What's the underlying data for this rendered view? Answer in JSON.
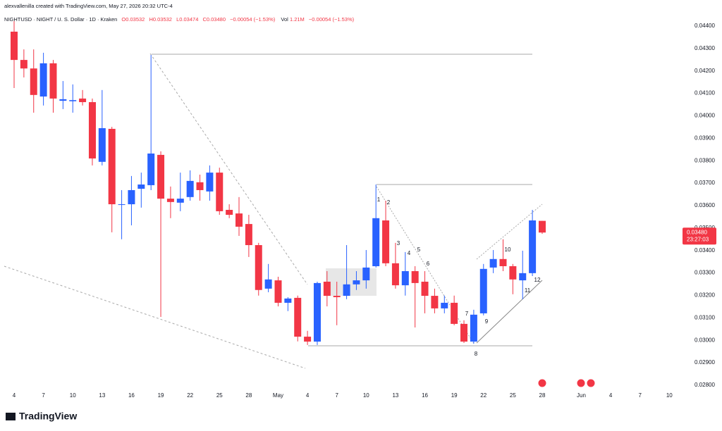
{
  "chart_data": {
    "type": "candlestick",
    "attribution": "alexvallenilla created with TradingView.com, May 27, 2026 20:32 UTC-4",
    "title": "NIGHTUSD · NIGHT / U. S. Dollar · 1D · Kraken",
    "ohlc_legend": [
      "O0.03532",
      "H0.03532",
      "L0.03474",
      "C0.03480",
      "−0.00054 (−1.53%)"
    ],
    "volume_legend": [
      "Vol",
      "1.21M",
      "−0.00054 (−1.53%)"
    ],
    "last_price_label": "0.03480",
    "countdown": "23:27:03",
    "annotations": [
      "1",
      "2",
      "3",
      "4",
      "5",
      "6",
      "7",
      "8",
      "9",
      "10",
      "11",
      "12"
    ],
    "brand": "TradingView",
    "up_color": "#2962ff",
    "down_color": "#f23645",
    "categories": [
      "4",
      null,
      null,
      "7",
      null,
      null,
      "10",
      null,
      null,
      "13",
      null,
      null,
      "16",
      null,
      null,
      "19",
      null,
      null,
      "22",
      null,
      null,
      "25",
      null,
      null,
      "28",
      null,
      null,
      "May",
      null,
      null,
      "4",
      null,
      null,
      "7",
      null,
      null,
      "10",
      null,
      null,
      "13",
      null,
      null,
      "16",
      null,
      null,
      "19",
      null,
      null,
      "22",
      null,
      null,
      "25",
      null,
      null,
      "28",
      null,
      null,
      null,
      "Jun",
      null,
      null,
      "4",
      null,
      null,
      "7",
      null,
      null,
      "10"
    ],
    "open": [
      0.04375,
      0.04249,
      0.04211,
      0.04086,
      0.04234,
      0.04067,
      0.04065,
      0.04077,
      0.04061,
      0.03795,
      0.03942,
      0.03603,
      0.03606,
      0.03675,
      0.03691,
      0.03826,
      0.03631,
      0.03613,
      0.03638,
      0.03704,
      0.03663,
      0.03747,
      0.03581,
      0.03565,
      0.03518,
      0.03424,
      0.0323,
      0.03267,
      0.03167,
      0.03189,
      0.03016,
      0.02994,
      0.03261,
      0.03198,
      0.03198,
      0.03249,
      0.03267,
      0.0333,
      0.03534,
      0.03343,
      0.03245,
      0.03308,
      0.03261,
      0.03198,
      0.03142,
      0.03167,
      0.03073,
      0.02994,
      0.0312,
      0.03324,
      0.03362,
      0.0333,
      0.03267,
      0.03299,
      0.03532,
      null,
      null,
      null,
      null,
      null,
      null,
      null,
      null,
      null,
      null,
      null,
      null,
      null
    ],
    "high": [
      0.04422,
      0.04296,
      0.04296,
      0.04281,
      0.04249,
      0.04155,
      0.0414,
      0.04115,
      0.04077,
      0.04115,
      0.03951,
      0.03669,
      0.03732,
      0.03747,
      0.04271,
      0.03842,
      0.03685,
      0.03747,
      0.03757,
      0.03738,
      0.03779,
      0.03769,
      0.03606,
      0.03638,
      0.03559,
      0.03434,
      0.0334,
      0.03283,
      0.03192,
      0.03199,
      0.03042,
      0.03261,
      0.03308,
      0.03261,
      0.03424,
      0.03308,
      0.03402,
      0.03694,
      0.03622,
      0.03434,
      0.03393,
      0.0333,
      0.03308,
      0.0323,
      0.03199,
      0.03199,
      0.03089,
      0.03136,
      0.0334,
      0.03402,
      0.0345,
      0.0334,
      0.03399,
      0.03581,
      0.03532,
      null,
      null,
      null,
      null,
      null,
      null,
      null,
      null,
      null,
      null,
      null,
      null,
      null
    ],
    "low": [
      0.04124,
      0.04171,
      0.04014,
      0.04046,
      0.04014,
      0.0403,
      0.04014,
      0.04046,
      0.03779,
      0.03779,
      0.03481,
      0.0345,
      0.03512,
      0.03591,
      0.03669,
      0.03104,
      0.03544,
      0.03575,
      0.03622,
      0.03622,
      0.03622,
      0.03559,
      0.03544,
      0.03465,
      0.03371,
      0.03199,
      0.03214,
      0.03151,
      0.0313,
      0.02995,
      0.02979,
      0.02979,
      0.03151,
      0.03067,
      0.03183,
      0.03224,
      0.0323,
      0.03324,
      0.0333,
      0.0323,
      0.03199,
      0.03057,
      0.0312,
      0.0312,
      0.0312,
      0.03067,
      0.02988,
      0.02985,
      0.03111,
      0.03299,
      0.03308,
      0.03205,
      0.03183,
      0.03286,
      0.03474,
      null,
      null,
      null,
      null,
      null,
      null,
      null,
      null,
      null,
      null,
      null,
      null,
      null
    ],
    "close": [
      0.04249,
      0.04211,
      0.04093,
      0.04234,
      0.04077,
      0.04074,
      0.0407,
      0.04061,
      0.0381,
      0.03945,
      0.03606,
      0.03606,
      0.03669,
      0.03694,
      0.03832,
      0.03631,
      0.03616,
      0.03631,
      0.0371,
      0.03669,
      0.03747,
      0.03575,
      0.03559,
      0.03506,
      0.03424,
      0.03224,
      0.03271,
      0.03167,
      0.03186,
      0.03016,
      0.02994,
      0.03255,
      0.03198,
      0.03192,
      0.03249,
      0.03267,
      0.03324,
      0.03544,
      0.03343,
      0.03245,
      0.03308,
      0.03255,
      0.03198,
      0.03142,
      0.03167,
      0.03073,
      0.02994,
      0.03114,
      0.03318,
      0.03362,
      0.0333,
      0.03271,
      0.03299,
      0.03534,
      0.0348,
      null,
      null,
      null,
      null,
      null,
      null,
      null,
      null,
      null,
      null,
      null,
      null,
      null
    ],
    "ylim": [
      0.02784,
      0.04469
    ],
    "yticks": [
      {
        "value": 0.044,
        "label": "0.04400"
      },
      {
        "value": 0.043,
        "label": "0.04300"
      },
      {
        "value": 0.042,
        "label": "0.04200"
      },
      {
        "value": 0.041,
        "label": "0.04100"
      },
      {
        "value": 0.04,
        "label": "0.04000"
      },
      {
        "value": 0.039,
        "label": "0.03900"
      },
      {
        "value": 0.038,
        "label": "0.03800"
      },
      {
        "value": 0.037,
        "label": "0.03700"
      },
      {
        "value": 0.036,
        "label": "0.03600"
      },
      {
        "value": 0.035,
        "label": "0.03500"
      },
      {
        "value": 0.034,
        "label": "0.03400"
      },
      {
        "value": 0.033,
        "label": "0.03300"
      },
      {
        "value": 0.032,
        "label": "0.03200"
      },
      {
        "value": 0.031,
        "label": "0.03100"
      },
      {
        "value": 0.03,
        "label": "0.03000"
      },
      {
        "value": 0.029,
        "label": "0.02900"
      },
      {
        "value": 0.028,
        "label": "0.02800"
      }
    ],
    "grid": false
  }
}
